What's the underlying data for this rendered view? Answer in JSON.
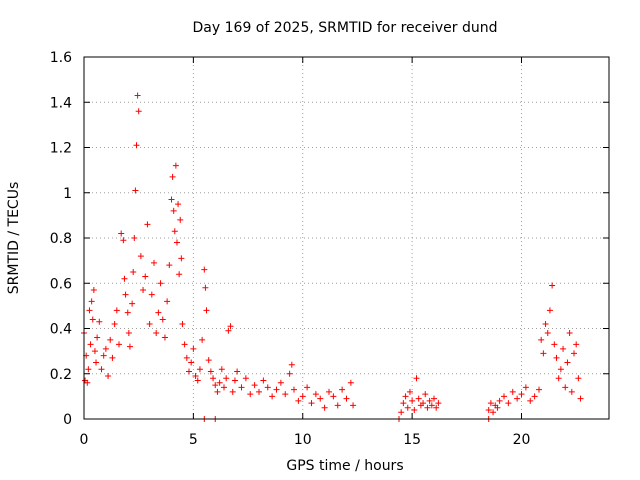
{
  "chart_data": {
    "type": "scatter",
    "title": "Day 169 of 2025, SRMTID for receiver dund",
    "xlabel": "GPS time / hours",
    "ylabel": "SRMTID / TECUs",
    "xlim": [
      0,
      24
    ],
    "ylim": [
      0,
      1.6
    ],
    "x_ticks": [
      0,
      5,
      10,
      15,
      20
    ],
    "x_tick_labels": [
      "0",
      "5",
      "10",
      "15",
      "20"
    ],
    "y_ticks": [
      0,
      0.2,
      0.4,
      0.6,
      0.8,
      1.0,
      1.2,
      1.4,
      1.6
    ],
    "y_tick_labels": [
      "0",
      "0.2",
      "0.4",
      "0.6",
      "0.8",
      "1",
      "1.2",
      "1.4",
      "1.6"
    ],
    "grid": true,
    "marker": "plus",
    "series": [
      {
        "name": "dund",
        "color": "#ff0000",
        "x": [
          0.0,
          0.05,
          0.1,
          0.15,
          0.2,
          0.25,
          0.3,
          0.35,
          0.4,
          0.45,
          0.5,
          0.55,
          0.6,
          0.7,
          0.8,
          0.9,
          1.0,
          1.1,
          1.2,
          1.3,
          1.4,
          1.5,
          1.6,
          1.7,
          1.8,
          1.85,
          1.9,
          2.0,
          2.05,
          2.1,
          2.2,
          2.25,
          2.3,
          2.35,
          2.4,
          2.45,
          2.5,
          2.6,
          2.7,
          2.8,
          2.9,
          3.0,
          3.1,
          3.2,
          3.3,
          3.4,
          3.5,
          3.6,
          3.7,
          3.8,
          3.9,
          4.0,
          4.05,
          4.1,
          4.15,
          4.2,
          4.25,
          4.3,
          4.35,
          4.4,
          4.45,
          4.5,
          4.6,
          4.7,
          4.8,
          4.9,
          5.0,
          5.1,
          5.2,
          5.3,
          5.4,
          5.5,
          5.55,
          5.6,
          5.7,
          5.8,
          5.9,
          6.0,
          6.1,
          6.2,
          6.3,
          6.4,
          6.5,
          6.6,
          6.7,
          6.8,
          6.9,
          7.0,
          7.2,
          7.4,
          7.6,
          7.8,
          8.0,
          8.2,
          8.4,
          8.6,
          8.8,
          9.0,
          9.2,
          9.4,
          9.5,
          9.6,
          9.8,
          10.0,
          10.2,
          10.4,
          10.6,
          10.8,
          11.0,
          11.2,
          11.4,
          11.6,
          11.8,
          12.0,
          12.2,
          12.3,
          14.5,
          14.6,
          14.7,
          14.8,
          14.9,
          15.0,
          15.1,
          15.2,
          15.3,
          15.4,
          15.5,
          15.6,
          15.7,
          15.8,
          15.9,
          16.0,
          16.1,
          16.2,
          18.5,
          18.6,
          18.7,
          18.8,
          18.9,
          19.0,
          19.2,
          19.4,
          19.6,
          19.8,
          20.0,
          20.2,
          20.4,
          20.6,
          20.8,
          20.9,
          21.0,
          21.1,
          21.2,
          21.3,
          21.4,
          21.5,
          21.6,
          21.7,
          21.8,
          21.9,
          22.0,
          22.1,
          22.2,
          22.3,
          22.4,
          22.5,
          22.6,
          22.7,
          5.5,
          6.0,
          14.4,
          18.5
        ],
        "y": [
          0.38,
          0.17,
          0.28,
          0.16,
          0.22,
          0.48,
          0.33,
          0.52,
          0.44,
          0.57,
          0.3,
          0.25,
          0.36,
          0.43,
          0.22,
          0.28,
          0.31,
          0.19,
          0.35,
          0.27,
          0.42,
          0.48,
          0.33,
          0.82,
          0.79,
          0.62,
          0.55,
          0.47,
          0.38,
          0.32,
          0.51,
          0.65,
          0.8,
          1.01,
          1.21,
          1.43,
          1.36,
          0.72,
          0.57,
          0.63,
          0.86,
          0.42,
          0.55,
          0.69,
          0.38,
          0.47,
          0.6,
          0.44,
          0.36,
          0.52,
          0.68,
          0.97,
          1.07,
          0.92,
          0.83,
          1.12,
          0.78,
          0.95,
          0.64,
          0.88,
          0.71,
          0.42,
          0.33,
          0.27,
          0.21,
          0.25,
          0.31,
          0.19,
          0.17,
          0.22,
          0.35,
          0.66,
          0.58,
          0.48,
          0.26,
          0.21,
          0.18,
          0.15,
          0.12,
          0.16,
          0.22,
          0.14,
          0.18,
          0.39,
          0.41,
          0.12,
          0.17,
          0.21,
          0.14,
          0.18,
          0.11,
          0.15,
          0.12,
          0.17,
          0.14,
          0.1,
          0.13,
          0.16,
          0.11,
          0.2,
          0.24,
          0.13,
          0.08,
          0.1,
          0.14,
          0.07,
          0.11,
          0.09,
          0.05,
          0.12,
          0.1,
          0.06,
          0.13,
          0.09,
          0.16,
          0.06,
          0.03,
          0.07,
          0.1,
          0.05,
          0.12,
          0.08,
          0.04,
          0.18,
          0.09,
          0.06,
          0.07,
          0.11,
          0.05,
          0.08,
          0.06,
          0.09,
          0.05,
          0.07,
          0.04,
          0.07,
          0.03,
          0.06,
          0.05,
          0.08,
          0.1,
          0.07,
          0.12,
          0.09,
          0.11,
          0.14,
          0.08,
          0.1,
          0.13,
          0.35,
          0.29,
          0.42,
          0.38,
          0.48,
          0.59,
          0.33,
          0.27,
          0.18,
          0.22,
          0.31,
          0.14,
          0.25,
          0.38,
          0.12,
          0.29,
          0.33,
          0.18,
          0.09,
          0.0,
          0.0,
          0.0,
          0.0
        ]
      }
    ]
  }
}
